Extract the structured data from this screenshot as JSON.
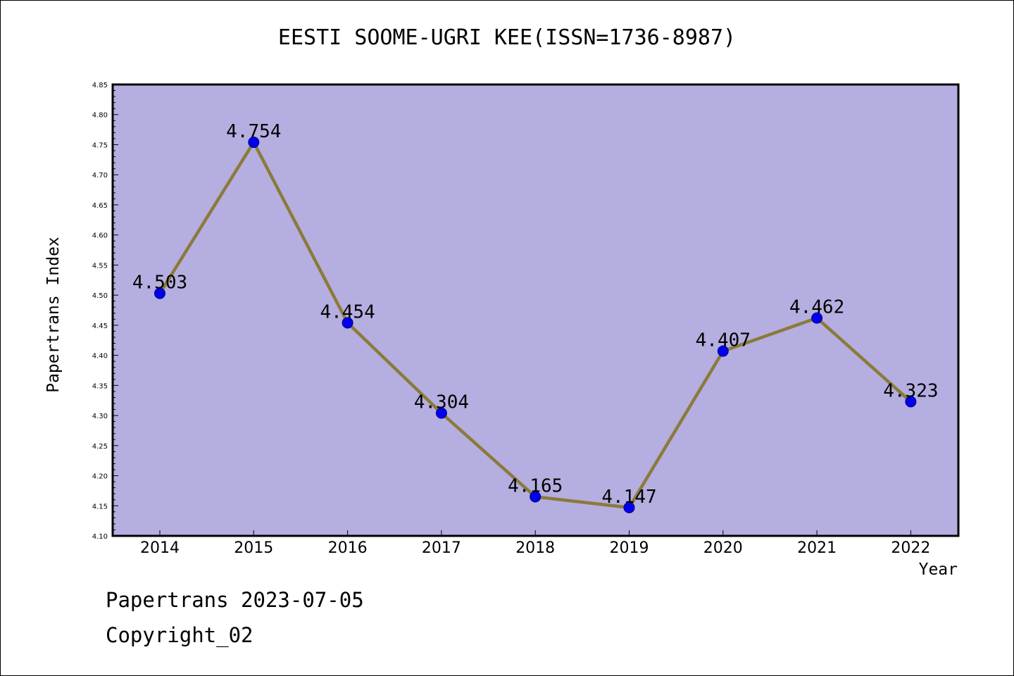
{
  "chart_data": {
    "type": "line",
    "title": "EESTI SOOME-UGRI KEE(ISSN=1736-8987)",
    "xlabel": "Year",
    "ylabel": "Papertrans Index",
    "categories": [
      "2014",
      "2015",
      "2016",
      "2017",
      "2018",
      "2019",
      "2020",
      "2021",
      "2022"
    ],
    "values": [
      4.503,
      4.754,
      4.454,
      4.304,
      4.165,
      4.147,
      4.407,
      4.462,
      4.323
    ],
    "data_labels": [
      "4.503",
      "4.754",
      "4.454",
      "4.304",
      "4.165",
      "4.147",
      "4.407",
      "4.462",
      "4.323"
    ],
    "ylim": [
      4.1,
      4.85
    ],
    "yticks": [
      "4.10",
      "4.15",
      "4.20",
      "4.25",
      "4.30",
      "4.35",
      "4.40",
      "4.45",
      "4.50",
      "4.55",
      "4.60",
      "4.65",
      "4.70",
      "4.75",
      "4.80",
      "4.85"
    ],
    "grid": false,
    "legend": "none",
    "colors": {
      "plot_background": "#b5aee0",
      "line": "#8b7a3a",
      "marker": "#0000ee",
      "marker_edge": "#000080"
    }
  },
  "footer": {
    "date": "Papertrans 2023-07-05",
    "copyright": "Copyright_02"
  }
}
